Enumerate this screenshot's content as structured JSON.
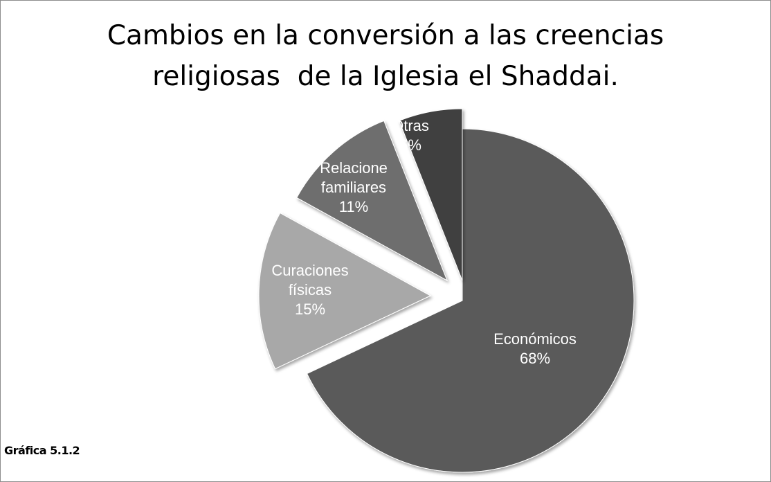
{
  "chart_data": {
    "type": "pie",
    "title_lines": [
      "Cambios en la conversión a las creencias",
      "religiosas  de la Iglesia el Shaddai."
    ],
    "slices": [
      {
        "label": [
          "Económicos",
          "68%"
        ],
        "value": 68,
        "color": "#5a5a5a"
      },
      {
        "label": [
          "Curaciones",
          "físicas",
          "15%"
        ],
        "value": 15,
        "color": "#a8a8a8"
      },
      {
        "label": [
          "Relacione",
          "familiares",
          "11%"
        ],
        "value": 11,
        "color": "#6e6e6e"
      },
      {
        "label": [
          "Otras",
          "6%"
        ],
        "value": 6,
        "color": "#404040"
      }
    ],
    "exploded": true,
    "legend": "none"
  },
  "caption": "Gráfica 5.1.2"
}
